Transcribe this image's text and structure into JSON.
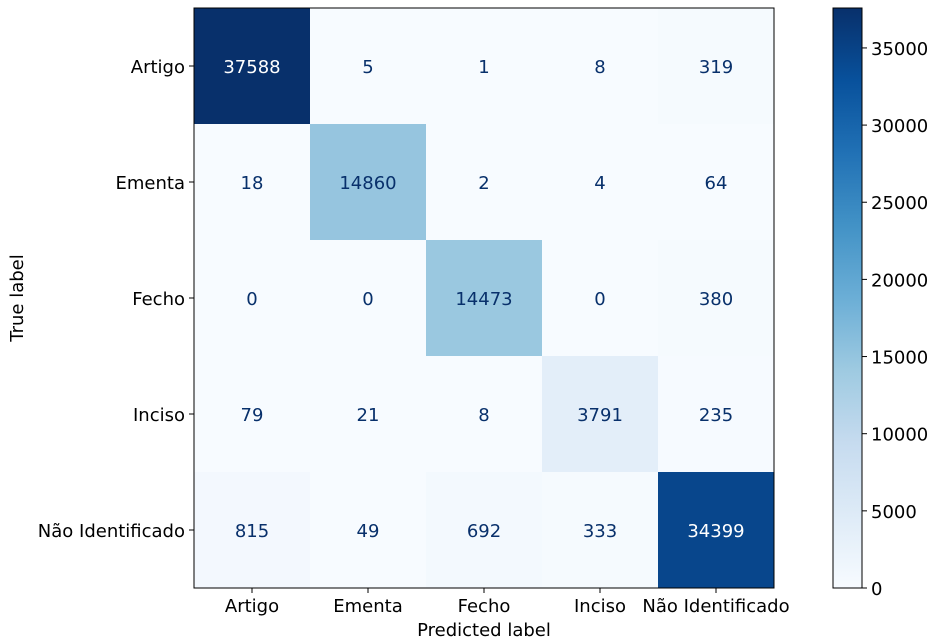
{
  "chart_data": {
    "type": "heatmap",
    "title": "",
    "xlabel": "Predicted label",
    "ylabel": "True label",
    "x_categories": [
      "Artigo",
      "Ementa",
      "Fecho",
      "Inciso",
      "Não Identificado"
    ],
    "y_categories": [
      "Artigo",
      "Ementa",
      "Fecho",
      "Inciso",
      "Não Identificado"
    ],
    "matrix": [
      [
        37588,
        5,
        1,
        8,
        319
      ],
      [
        18,
        14860,
        2,
        4,
        64
      ],
      [
        0,
        0,
        14473,
        0,
        380
      ],
      [
        79,
        21,
        8,
        3791,
        235
      ],
      [
        815,
        49,
        692,
        333,
        34399
      ]
    ],
    "colormap": "Blues",
    "color_low": "#f7fbff",
    "color_high": "#08306b",
    "colorbar": {
      "min": 0,
      "max": 37588,
      "ticks": [
        0,
        5000,
        10000,
        15000,
        20000,
        25000,
        30000,
        35000
      ]
    },
    "text_color_light_cell": "#08306b",
    "text_color_dark_cell": "#ffffff",
    "grid": false
  }
}
